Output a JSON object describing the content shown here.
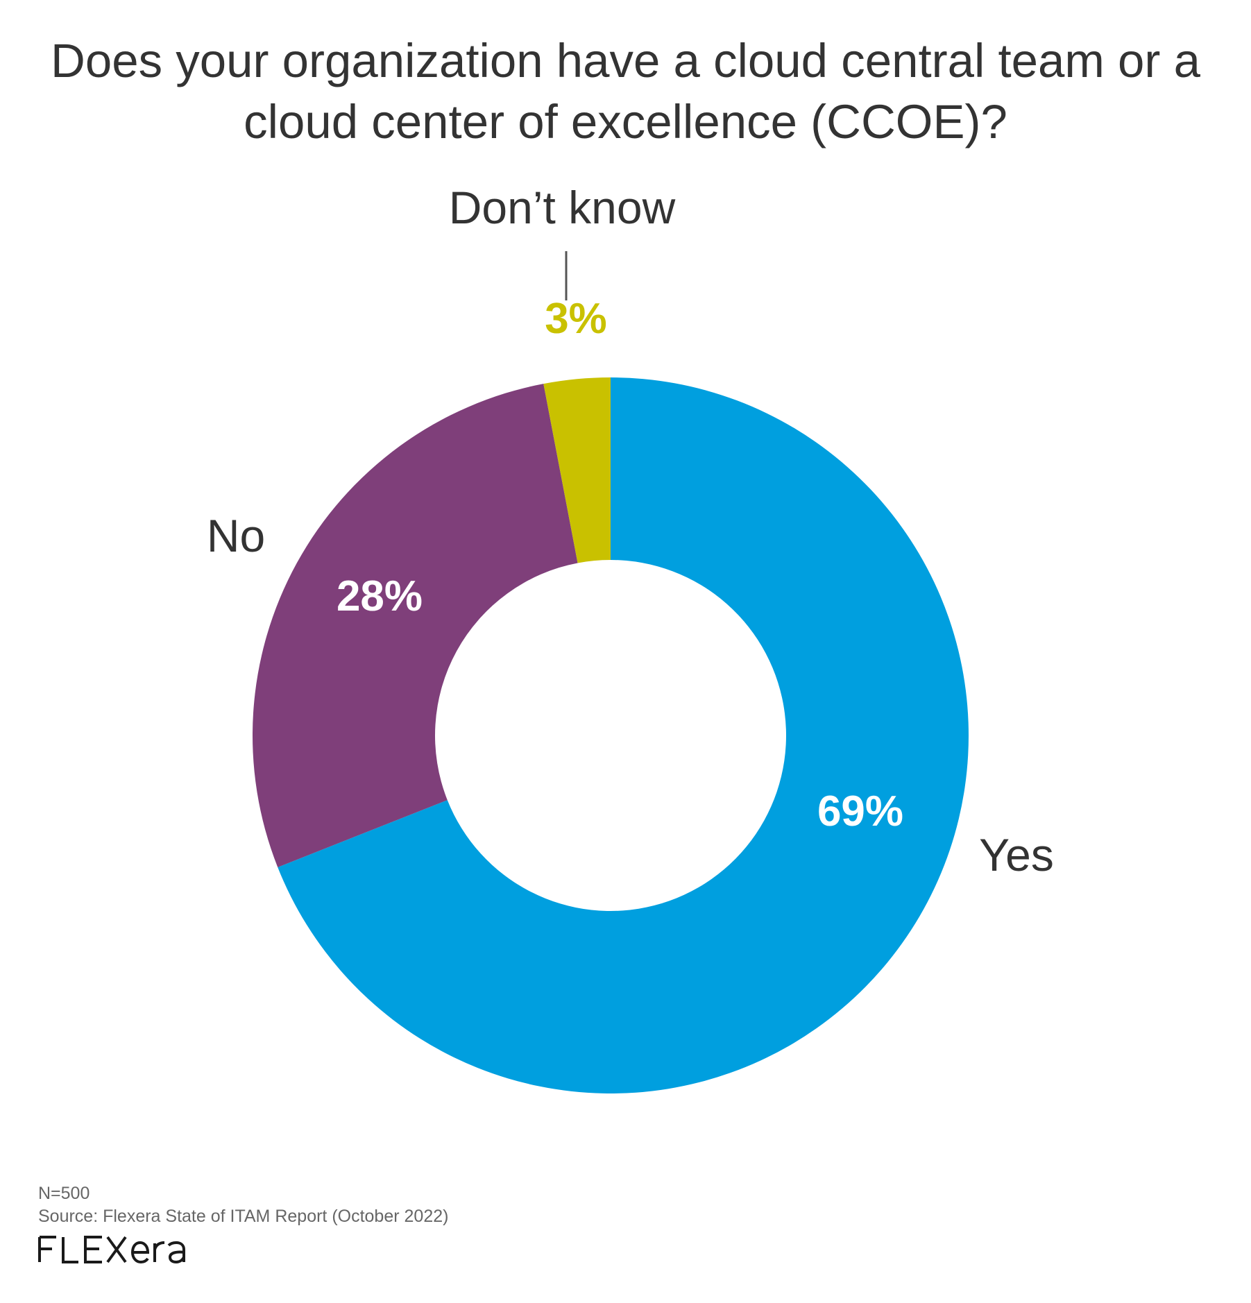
{
  "title": {
    "line1": "Does your organization have a cloud central team or a",
    "line2": "cloud center of excellence (CCOE)?"
  },
  "chart_data": {
    "type": "pie",
    "donut": true,
    "title": "Does your organization have a cloud central team or a cloud center of excellence (CCOE)?",
    "slices": [
      {
        "label": "Yes",
        "value": 69,
        "value_label": "69%",
        "color": "#009fdf"
      },
      {
        "label": "No",
        "value": 28,
        "value_label": "28%",
        "color": "#7f3f7a"
      },
      {
        "label": "Don’t know",
        "value": 3,
        "value_label": "3%",
        "color": "#c9c100"
      }
    ]
  },
  "footer": {
    "n": "N=500",
    "source": "Source: Flexera State of ITAM Report (October 2022)",
    "logo_text": "FLEXERA"
  },
  "colors": {
    "text": "#333333",
    "footer_text": "#666666",
    "value_label_inside": "#ffffff"
  }
}
